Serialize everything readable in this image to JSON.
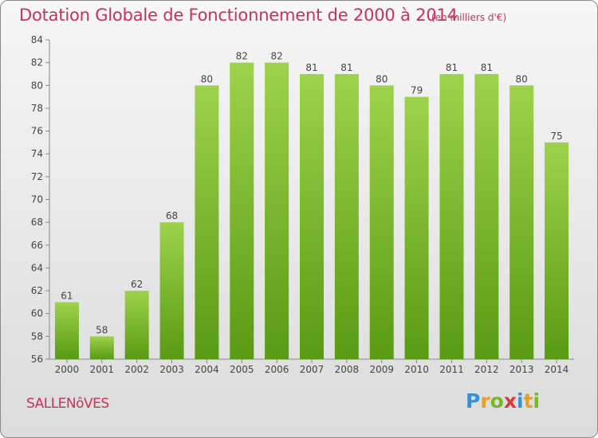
{
  "header": {
    "title": "Dotation Globale de Fonctionnement de 2000 à 2014",
    "unit": "(en milliers d'€)"
  },
  "footer": {
    "commune": "SALLENôVES",
    "logo_letters": [
      "P",
      "r",
      "o",
      "x",
      "i",
      "t",
      "i"
    ],
    "logo_colors": [
      "#3a8fd8",
      "#e8a020",
      "#76b82a",
      "#d83a3a",
      "#3a8fd8",
      "#e8a020",
      "#76b82a"
    ]
  },
  "colors": {
    "bar_light": "#9ed24c",
    "bar_dark": "#5a9a14",
    "text": "#444444",
    "title": "#c8325a"
  },
  "chart_data": {
    "type": "bar",
    "title": "Dotation Globale de Fonctionnement de 2000 à 2014",
    "subtitle": "(en milliers d'€)",
    "xlabel": "",
    "ylabel": "",
    "categories": [
      "2000",
      "2001",
      "2002",
      "2003",
      "2004",
      "2005",
      "2006",
      "2007",
      "2008",
      "2009",
      "2010",
      "2011",
      "2012",
      "2013",
      "2014"
    ],
    "values": [
      61,
      58,
      62,
      68,
      80,
      82,
      82,
      81,
      81,
      80,
      79,
      81,
      81,
      80,
      75
    ],
    "ylim": [
      56,
      84
    ],
    "yticks": [
      56,
      58,
      60,
      62,
      64,
      66,
      68,
      70,
      72,
      74,
      76,
      78,
      80,
      82,
      84
    ],
    "grid": false
  }
}
